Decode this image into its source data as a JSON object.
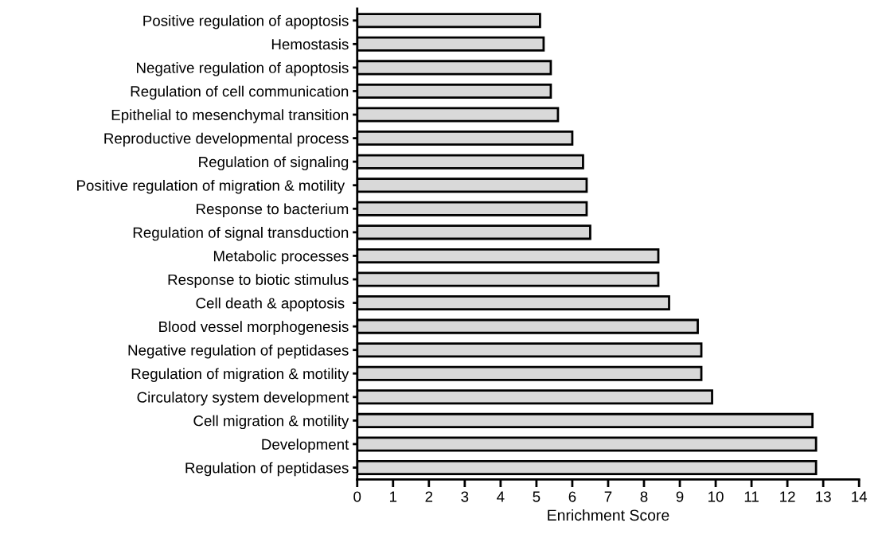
{
  "chart_data": {
    "type": "bar",
    "orientation": "horizontal",
    "xlabel": "Enrichment Score",
    "categories": [
      "Positive regulation of apoptosis",
      "Hemostasis",
      "Negative regulation of apoptosis",
      "Regulation of cell communication",
      "Epithelial to mesenchymal transition",
      "Reproductive developmental process",
      "Regulation of signaling",
      "Positive regulation of migration & motility ",
      "Response to bacterium",
      "Regulation of signal transduction",
      "Metabolic processes",
      "Response to biotic stimulus",
      "Cell death & apoptosis ",
      "Blood vessel morphogenesis",
      "Negative regulation of peptidases",
      "Regulation of migration & motility",
      "Circulatory system development",
      "Cell migration & motility",
      "Development",
      "Regulation of peptidases"
    ],
    "values": [
      5.1,
      5.2,
      5.4,
      5.4,
      5.6,
      6.0,
      6.3,
      6.4,
      6.4,
      6.5,
      8.4,
      8.4,
      8.7,
      9.5,
      9.6,
      9.6,
      9.9,
      12.7,
      12.8,
      12.8
    ],
    "color": "#d9d9d9",
    "xlim": [
      0,
      14
    ],
    "xticks": [
      0,
      1,
      2,
      3,
      4,
      5,
      6,
      7,
      8,
      9,
      10,
      11,
      12,
      13,
      14
    ],
    "grid": false
  }
}
